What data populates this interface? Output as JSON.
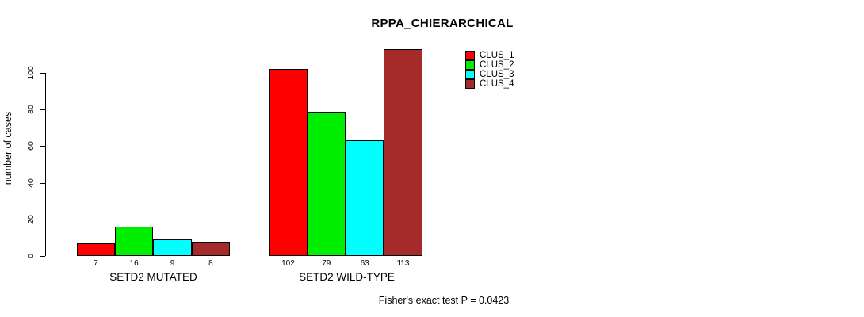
{
  "title": "RPPA_CHIERARCHICAL",
  "footer": "Fisher's exact test P = 0.0423",
  "chart_data": {
    "type": "bar",
    "title": "RPPA_CHIERARCHICAL",
    "xlabel": "",
    "ylabel": "number of cases",
    "ylim": [
      0,
      113
    ],
    "yticks": [
      "0",
      "20",
      "40",
      "60",
      "80",
      "100"
    ],
    "grid": false,
    "legend_position": "top-right",
    "series": [
      {
        "name": "CLUS_1",
        "color": "#FF0000"
      },
      {
        "name": "CLUS_2",
        "color": "#00EE00"
      },
      {
        "name": "CLUS_3",
        "color": "#00FFFF"
      },
      {
        "name": "CLUS_4",
        "color": "#A52A2A"
      }
    ],
    "groups": [
      {
        "label": "SETD2 MUTATED",
        "values": [
          7,
          16,
          9,
          8
        ]
      },
      {
        "label": "SETD2 WILD-TYPE",
        "values": [
          102,
          79,
          63,
          113
        ]
      }
    ],
    "annotation": "Fisher's exact test P = 0.0423"
  }
}
